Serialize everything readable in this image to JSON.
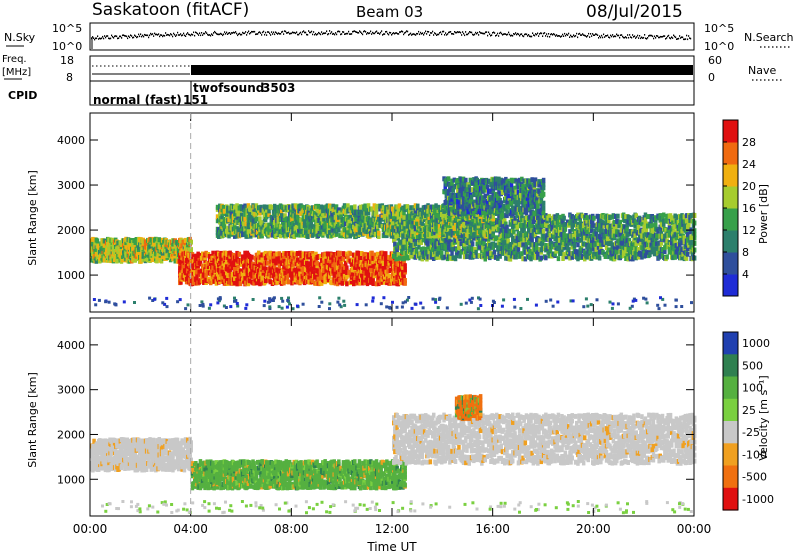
{
  "header": {
    "site": "Saskatoon (fitACF)",
    "beam": "Beam 03",
    "date": "08/Jul/2015"
  },
  "top_panels": {
    "nsky_label": "N.Sky",
    "nsky_ticks": [
      "10^5",
      "10^0"
    ],
    "nsearch_label": "N.Search",
    "nsearch_ticks": [
      "10^5",
      "10^0"
    ],
    "freq_label": "Freq.",
    "freq_unit": "[MHz]",
    "freq_ticks": [
      "18",
      "8"
    ],
    "nave_label": "Nave",
    "nave_ticks": [
      "60",
      "0"
    ],
    "cpid_label": "CPID",
    "cpid_segments": [
      {
        "label": "normal (fast)",
        "value": "151"
      },
      {
        "label": "twofsound",
        "value": "3503"
      }
    ]
  },
  "chart_data": [
    {
      "type": "heatmap",
      "title": "",
      "xlabel": "Time UT",
      "ylabel": "Slant Range [km]",
      "xlim": [
        "00:00",
        "24:00"
      ],
      "ylim": [
        180,
        4600
      ],
      "x_ticks": [
        "00:00",
        "04:00",
        "08:00",
        "12:00",
        "16:00",
        "20:00",
        "00:00"
      ],
      "y_ticks": [
        1000,
        2000,
        3000,
        4000
      ],
      "colorbar": {
        "label": "Power [dB]",
        "ticks": [
          4,
          8,
          12,
          16,
          20,
          24,
          28
        ],
        "range": [
          0,
          32
        ],
        "colors": [
          "#1f2cd6",
          "#2f4f9c",
          "#2c7f6c",
          "#37a04a",
          "#a6cc2e",
          "#f0b010",
          "#f06a10",
          "#e01010"
        ]
      },
      "mode_change_time": "04:00",
      "echo_regions": [
        {
          "t": [
            0.0,
            4.0
          ],
          "range": [
            1250,
            1750
          ],
          "level": 18
        },
        {
          "t": [
            3.5,
            12.5
          ],
          "range": [
            750,
            1450
          ],
          "level": 28
        },
        {
          "t": [
            12.0,
            24.0
          ],
          "range": [
            1300,
            2300
          ],
          "level": 12
        },
        {
          "t": [
            5.0,
            16.0
          ],
          "range": [
            1800,
            2500
          ],
          "level": 14
        },
        {
          "t": [
            14.0,
            18.0
          ],
          "range": [
            2300,
            3100
          ],
          "level": 10
        }
      ]
    },
    {
      "type": "heatmap",
      "title": "",
      "xlabel": "Time UT",
      "ylabel": "Slant Range [km]",
      "xlim": [
        "00:00",
        "24:00"
      ],
      "ylim": [
        180,
        4600
      ],
      "x_ticks": [
        "00:00",
        "04:00",
        "08:00",
        "12:00",
        "16:00",
        "20:00",
        "00:00"
      ],
      "y_ticks": [
        1000,
        2000,
        3000,
        4000
      ],
      "colorbar": {
        "label": "Velocity [m s⁻¹]",
        "ticks": [
          "1000",
          "500",
          "100",
          "25",
          "-25",
          "-100",
          "-500",
          "-1000"
        ],
        "colors": [
          "#2040b0",
          "#2f8050",
          "#55b040",
          "#7ad040",
          "#c8c8c8",
          "#f0a020",
          "#f07010",
          "#e01010"
        ]
      },
      "mode_change_time": "04:00",
      "echo_regions": [
        {
          "t": [
            0.0,
            4.0
          ],
          "range": [
            1150,
            1850
          ],
          "level": "ground"
        },
        {
          "t": [
            4.0,
            12.5
          ],
          "range": [
            750,
            1350
          ],
          "level": 100
        },
        {
          "t": [
            12.0,
            24.0
          ],
          "range": [
            1300,
            2400
          ],
          "level": "ground"
        },
        {
          "t": [
            14.5,
            15.5
          ],
          "range": [
            2300,
            2800
          ],
          "level": -500
        }
      ]
    }
  ]
}
